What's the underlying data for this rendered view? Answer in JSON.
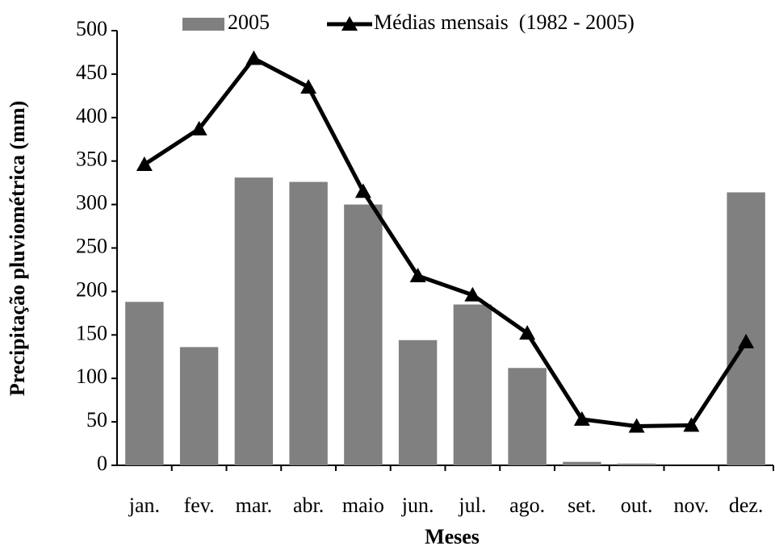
{
  "chart_data": {
    "type": "bar",
    "x_label": "Meses",
    "y_label": "Precipitação pluviométrica (mm)",
    "categories": [
      "jan.",
      "fev.",
      "mar.",
      "abr.",
      "maio",
      "jun.",
      "jul.",
      "ago.",
      "set.",
      "out.",
      "nov.",
      "dez."
    ],
    "series": [
      {
        "name": "2005",
        "type": "bar",
        "color": "#808080",
        "values": [
          188,
          136,
          331,
          326,
          300,
          144,
          185,
          112,
          4,
          2,
          0,
          314
        ]
      },
      {
        "name": "Médias mensais  (1982 - 2005)",
        "type": "line",
        "color": "#000000",
        "values": [
          346,
          387,
          468,
          435,
          315,
          218,
          196,
          152,
          53,
          45,
          46,
          142
        ]
      }
    ],
    "ylim": [
      0,
      500
    ],
    "yticks": [
      0,
      50,
      100,
      150,
      200,
      250,
      300,
      350,
      400,
      450,
      500
    ],
    "grid": false,
    "legend": "top"
  }
}
